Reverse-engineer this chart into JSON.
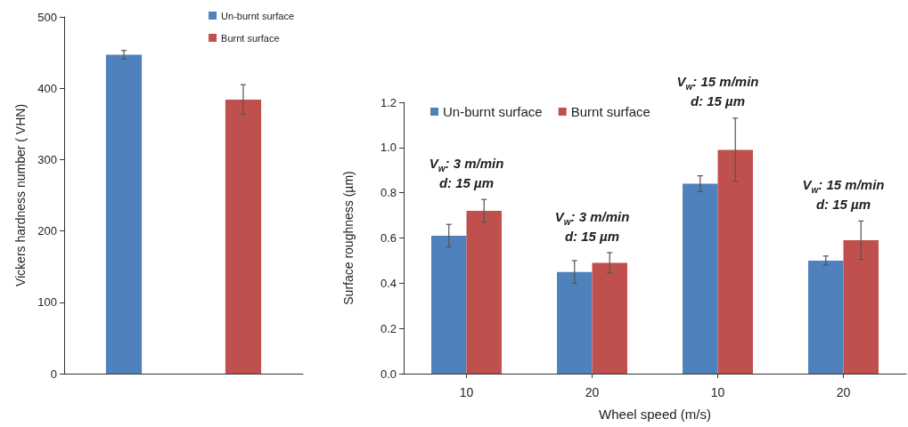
{
  "chart_data": [
    {
      "type": "bar",
      "stacked": true,
      "categories": [
        null,
        null
      ],
      "ylabel": "Vickers hardness number ( VHN)",
      "ylim": [
        0,
        500
      ],
      "yticks": [
        0,
        100,
        200,
        300,
        400,
        500
      ],
      "tick_labels": "y",
      "grid": false,
      "legend": "top right",
      "series": [
        {
          "name": "Un-burnt surface",
          "color": "#4f81bd",
          "values": [
            447,
            null
          ],
          "errors": [
            6,
            null
          ]
        },
        {
          "name": "Burnt surface",
          "color": "#c0504d",
          "values": [
            null,
            384
          ],
          "errors": [
            null,
            21
          ]
        }
      ]
    },
    {
      "type": "bar",
      "categories": [
        "10",
        "20",
        "10",
        "20"
      ],
      "xlabel": "Wheel speed (m/s)",
      "ylabel": "Surface roughness (µm)",
      "ylim": [
        0,
        1.2
      ],
      "yticks": [
        {
          "value": 0,
          "label": "0.0"
        },
        0.2,
        0.4,
        0.6,
        0.8,
        {
          "value": 1,
          "label": "1.0"
        },
        1.2
      ],
      "grid": false,
      "legend": "top left",
      "annotations": [
        "V$_{w}$: 3 m/min\nd: 15 µm",
        "V$_{w}$: 3 m/min\nd: 15 µm",
        "V$_{w}$: 15 m/min\nd: 15 µm",
        "V$_{w}$: 15 m/min\nd: 15 µm"
      ],
      "series": [
        {
          "name": "Un-burnt surface",
          "color": "#4f81bd",
          "values": [
            0.61,
            0.45,
            0.84,
            0.5
          ],
          "errors": [
            0.05,
            0.05,
            0.035,
            0.02
          ]
        },
        {
          "name": "Burnt surface",
          "color": "#c0504d",
          "values": [
            0.72,
            0.49,
            0.99,
            0.59
          ],
          "errors": [
            0.05,
            0.045,
            0.14,
            0.085
          ]
        }
      ]
    }
  ]
}
